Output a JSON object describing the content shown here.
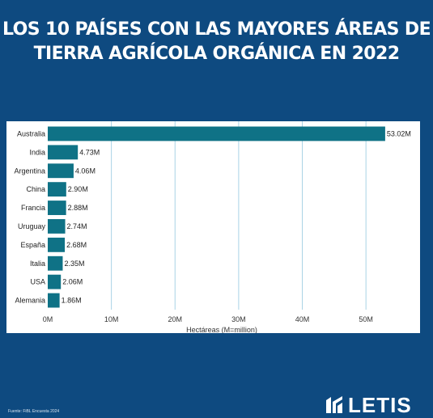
{
  "header": {
    "title_line1": "LOS 10 PAÍSES CON LAS MAYORES ÁREAS DE",
    "title_line2": "TIERRA AGRÍCOLA ORGÁNICA EN 2022"
  },
  "footer": {
    "source": "Fuente: FiBL Encuesta 2024",
    "logo_text": "LETIS"
  },
  "colors": {
    "background": "#0e4a80",
    "bar": "#0f7286",
    "grid": "#a9d3e6"
  },
  "chart_data": {
    "type": "bar",
    "orientation": "horizontal",
    "categories": [
      "Australia",
      "India",
      "Argentina",
      "China",
      "Francia",
      "Uruguay",
      "España",
      "Italia",
      "USA",
      "Alemania"
    ],
    "values": [
      53.02,
      4.73,
      4.06,
      2.9,
      2.88,
      2.74,
      2.68,
      2.35,
      2.06,
      1.86
    ],
    "value_labels": [
      "53.02M",
      "4.73M",
      "4.06M",
      "2.90M",
      "2.88M",
      "2.74M",
      "2.68M",
      "2.35M",
      "2.06M",
      "1.86M"
    ],
    "xlabel": "Hectáreas (M=million)",
    "xticks": [
      0,
      10,
      20,
      30,
      40,
      50
    ],
    "xtick_labels": [
      "0M",
      "10M",
      "20M",
      "30M",
      "40M",
      "50M"
    ],
    "xlim": [
      0,
      58.5
    ],
    "grid": true
  }
}
